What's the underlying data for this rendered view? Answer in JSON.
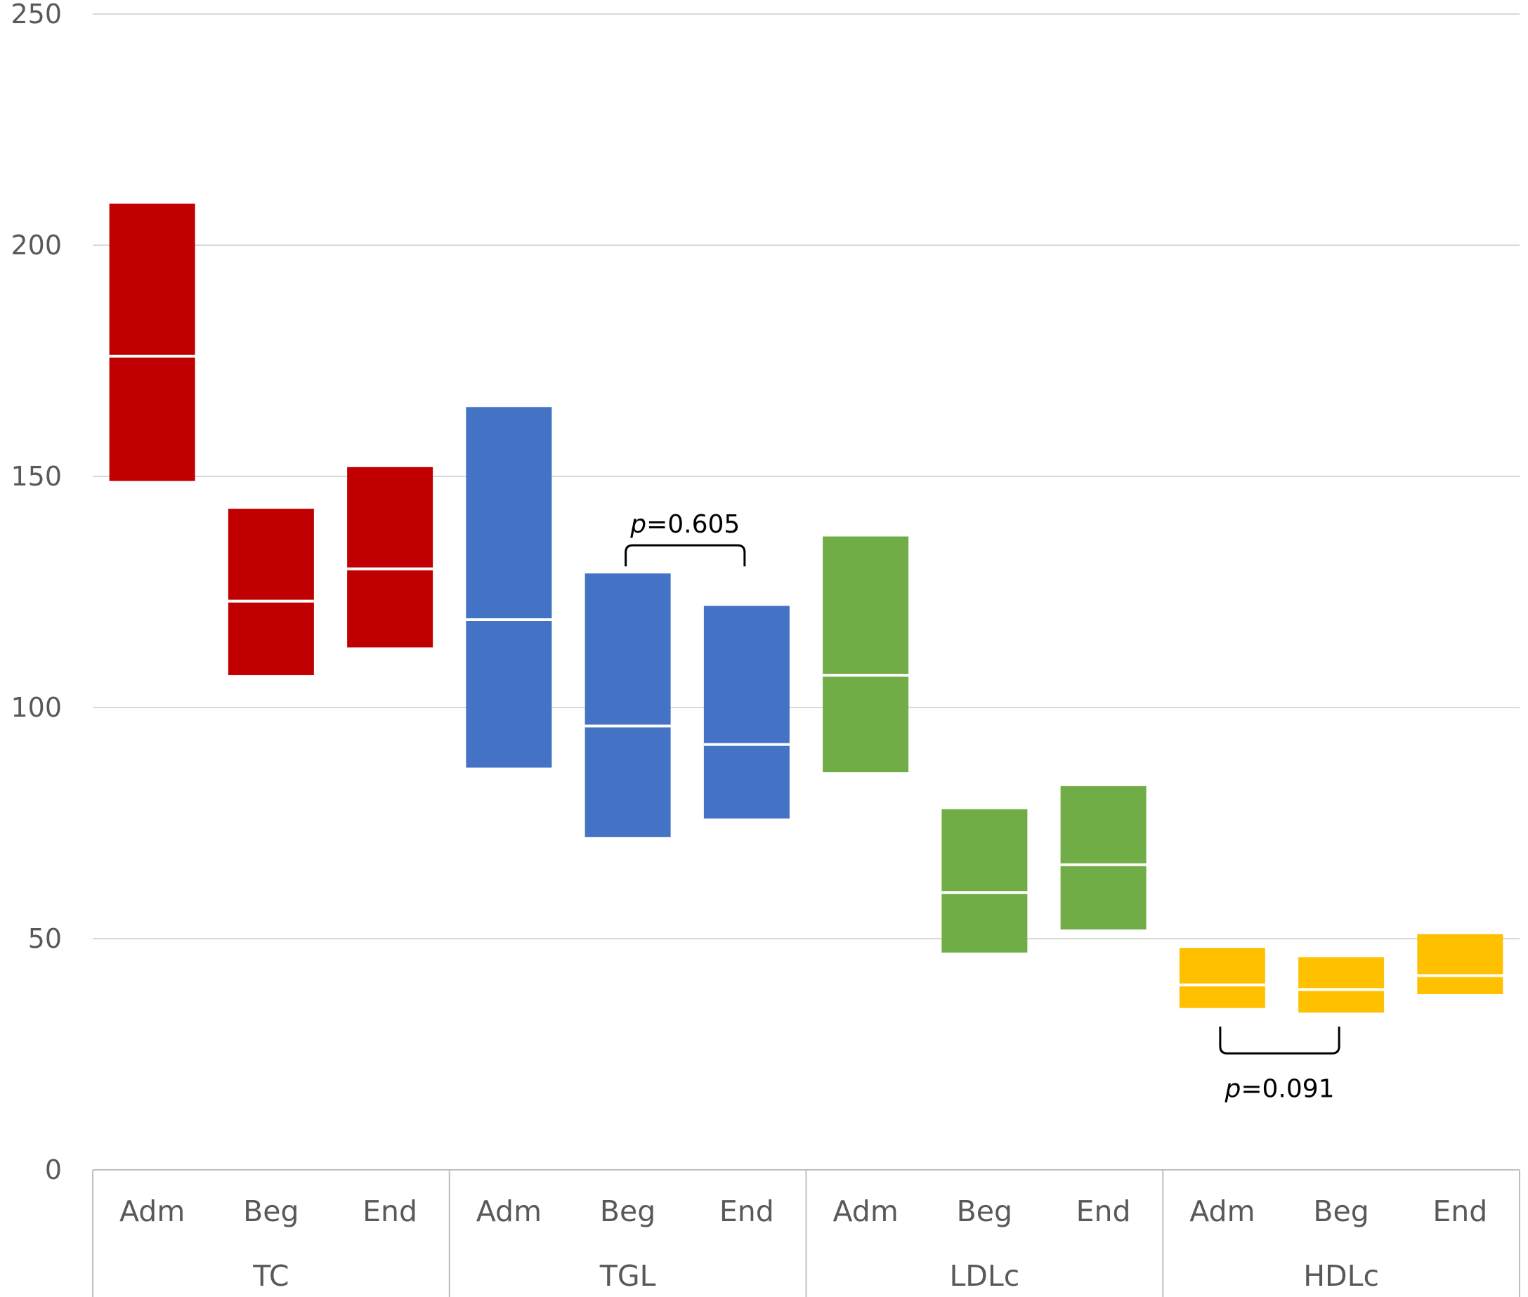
{
  "chart_data": {
    "type": "floating-box",
    "title": "",
    "xlabel": "",
    "ylabel": "",
    "ylim": [
      0,
      250
    ],
    "yticks": [
      0,
      50,
      100,
      150,
      200,
      250
    ],
    "grid": true,
    "legend": "none",
    "groups": [
      {
        "name": "TC",
        "color": "#C00000",
        "boxes": [
          {
            "label": "Adm",
            "low": 149,
            "high": 209,
            "median": 176
          },
          {
            "label": "Beg",
            "low": 107,
            "high": 143,
            "median": 123
          },
          {
            "label": "End",
            "low": 113,
            "high": 152,
            "median": 130
          }
        ]
      },
      {
        "name": "TGL",
        "color": "#4472C4",
        "boxes": [
          {
            "label": "Adm",
            "low": 87,
            "high": 165,
            "median": 119
          },
          {
            "label": "Beg",
            "low": 72,
            "high": 129,
            "median": 96
          },
          {
            "label": "End",
            "low": 76,
            "high": 122,
            "median": 92
          }
        ]
      },
      {
        "name": "LDLc",
        "color": "#70AD47",
        "boxes": [
          {
            "label": "Adm",
            "low": 86,
            "high": 137,
            "median": 107
          },
          {
            "label": "Beg",
            "low": 47,
            "high": 78,
            "median": 60
          },
          {
            "label": "End",
            "low": 52,
            "high": 83,
            "median": 66
          }
        ]
      },
      {
        "name": "HDLc",
        "color": "#FFC000",
        "boxes": [
          {
            "label": "Adm",
            "low": 35,
            "high": 48,
            "median": 40
          },
          {
            "label": "Beg",
            "low": 34,
            "high": 46,
            "median": 39
          },
          {
            "label": "End",
            "low": 38,
            "high": 51,
            "median": 42
          }
        ]
      }
    ],
    "annotations": [
      {
        "p_label": "p",
        "value_text": "=0.605",
        "group": 1,
        "from": 1,
        "to": 2,
        "side": "above"
      },
      {
        "p_label": "p",
        "value_text": "=0.091",
        "group": 3,
        "from": 0,
        "to": 1,
        "side": "below"
      }
    ]
  }
}
